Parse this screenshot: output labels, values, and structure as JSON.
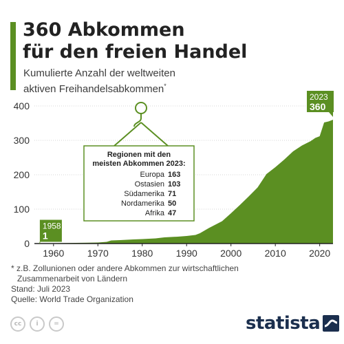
{
  "header": {
    "title_line1": "360 Abkommen",
    "title_line2": "für den freien Handel",
    "subtitle_line1": "Kumulierte Anzahl der weltweiten",
    "subtitle_line2": "aktiven Freihandelsabkommen",
    "subtitle_mark": "*"
  },
  "chart_data": {
    "type": "area",
    "x": [
      1958,
      1960,
      1965,
      1970,
      1972,
      1973,
      1975,
      1978,
      1980,
      1983,
      1985,
      1988,
      1990,
      1992,
      1993,
      1995,
      1998,
      2000,
      2002,
      2004,
      2006,
      2008,
      2010,
      2012,
      2014,
      2016,
      2018,
      2019,
      2020,
      2021,
      2022,
      2023
    ],
    "y": [
      1,
      1,
      2,
      3,
      5,
      9,
      10,
      12,
      13,
      15,
      18,
      20,
      22,
      25,
      30,
      45,
      65,
      88,
      112,
      137,
      163,
      202,
      222,
      244,
      268,
      285,
      298,
      307,
      312,
      352,
      355,
      360
    ],
    "x_ticks": [
      1960,
      1970,
      1980,
      1990,
      2000,
      2010,
      2020
    ],
    "y_ticks": [
      0,
      100,
      200,
      300,
      400
    ],
    "xlim": [
      1956,
      2023
    ],
    "ylim": [
      0,
      400
    ],
    "grid": "horizontal",
    "color": "#5b8f22",
    "labels": [
      {
        "year": "1958",
        "value": "1"
      },
      {
        "year": "2023",
        "value": "360"
      }
    ],
    "callout": {
      "title_line1": "Regionen mit den",
      "title_line2": "meisten Abkommen 2023:",
      "rows": [
        {
          "region": "Europa",
          "value": "163"
        },
        {
          "region": "Ostasien",
          "value": "103"
        },
        {
          "region": "Südamerika",
          "value": "71"
        },
        {
          "region": "Nordamerika",
          "value": "50"
        },
        {
          "region": "Afrika",
          "value": "47"
        }
      ]
    }
  },
  "footer": {
    "note_line1": "* z.B. Zollunionen oder andere Abkommen zur wirtschaftlichen",
    "note_line2": "Zusammenarbeit von Ländern",
    "stand": "Stand: Juli 2023",
    "source": "Quelle: World Trade Organization",
    "cc_icons": [
      "cc",
      "i",
      "="
    ],
    "brand": "statista"
  },
  "colors": {
    "accent": "#5b8f22",
    "brand_navy": "#1b2f4e"
  }
}
